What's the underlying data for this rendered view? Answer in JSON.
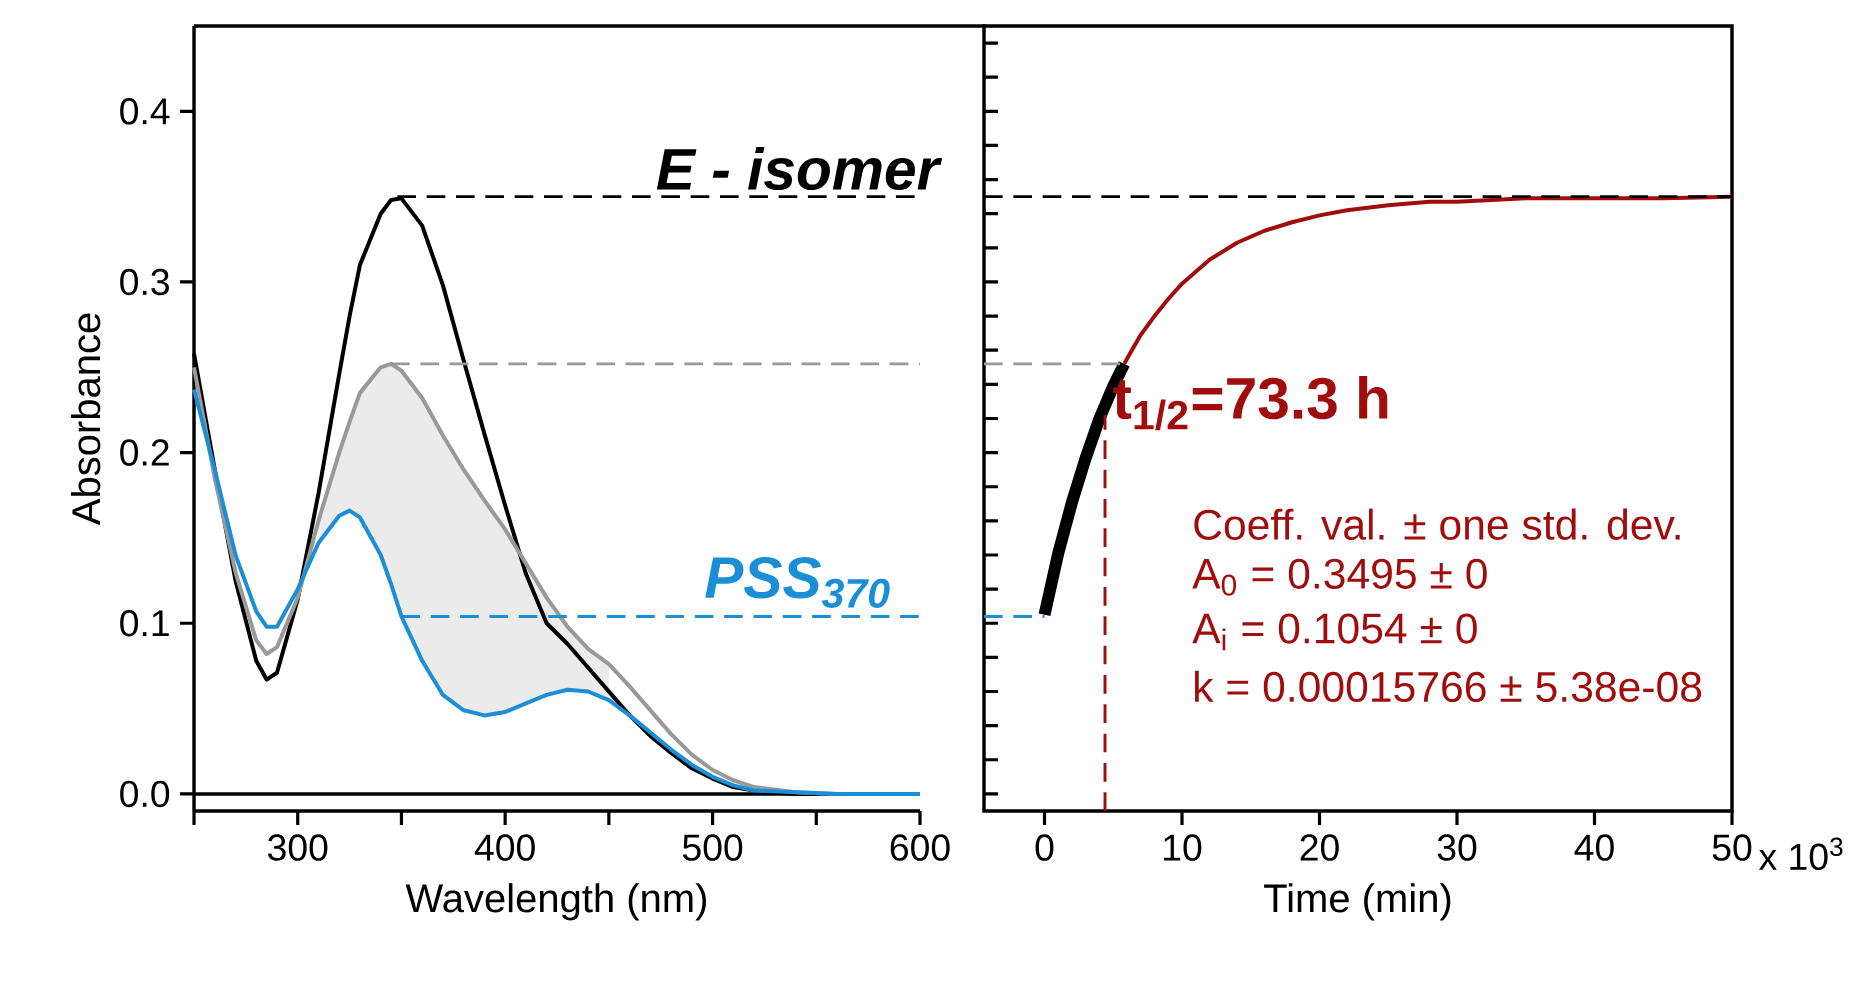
{
  "chart_data": [
    {
      "type": "line",
      "xlabel": "Wavelength (nm)",
      "ylabel": "Absorbance",
      "x": [
        250,
        260,
        270,
        280,
        285,
        290,
        300,
        310,
        320,
        325,
        330,
        340,
        345,
        350,
        360,
        370,
        380,
        390,
        400,
        410,
        420,
        430,
        440,
        450,
        460,
        470,
        480,
        490,
        500,
        510,
        520,
        540,
        560,
        600
      ],
      "series": [
        {
          "color": "#000000",
          "values": [
            0.258,
            0.19,
            0.125,
            0.078,
            0.067,
            0.071,
            0.114,
            0.176,
            0.246,
            0.28,
            0.31,
            0.34,
            0.348,
            0.349,
            0.333,
            0.298,
            0.254,
            0.211,
            0.169,
            0.129,
            0.1,
            0.088,
            0.074,
            0.06,
            0.046,
            0.034,
            0.024,
            0.015,
            0.009,
            0.004,
            0.002,
            0,
            0,
            0
          ]
        },
        {
          "color": "#999999",
          "values": [
            0.25,
            0.185,
            0.13,
            0.09,
            0.082,
            0.086,
            0.115,
            0.16,
            0.2,
            0.218,
            0.235,
            0.25,
            0.252,
            0.248,
            0.232,
            0.21,
            0.19,
            0.172,
            0.155,
            0.135,
            0.115,
            0.098,
            0.085,
            0.076,
            0.063,
            0.049,
            0.035,
            0.023,
            0.014,
            0.008,
            0.004,
            0.001,
            0,
            0
          ],
          "lower": [
            null,
            null,
            null,
            null,
            null,
            null,
            null,
            0.147,
            0.163,
            0.166,
            0.162,
            0.14,
            0.123,
            0.104,
            0.078,
            0.058,
            0.049,
            0.046,
            0.048,
            0.053,
            0.058,
            0.061,
            0.06,
            0.055,
            null,
            null,
            null,
            null,
            null,
            null,
            null,
            null,
            null,
            null
          ],
          "upper": [
            null,
            null,
            null,
            null,
            null,
            null,
            null,
            0.16,
            0.2,
            0.218,
            0.235,
            0.25,
            0.252,
            0.248,
            0.232,
            0.21,
            0.19,
            0.172,
            0.155,
            0.135,
            0.115,
            0.098,
            0.085,
            0.076,
            null,
            null,
            null,
            null,
            null,
            null,
            null,
            null,
            null,
            null
          ]
        },
        {
          "color": "#1a8fd6",
          "values": [
            0.237,
            0.19,
            0.14,
            0.107,
            0.098,
            0.098,
            0.12,
            0.147,
            0.163,
            0.166,
            0.162,
            0.14,
            0.123,
            0.104,
            0.078,
            0.058,
            0.049,
            0.046,
            0.048,
            0.053,
            0.058,
            0.061,
            0.06,
            0.055,
            0.046,
            0.036,
            0.026,
            0.017,
            0.01,
            0.005,
            0.002,
            0.001,
            0,
            0
          ]
        },
        {
          "name": "E - isomer",
          "color": "#000000",
          "line_style": "dashed",
          "x": [
            348,
            600
          ],
          "values": [
            0.35,
            0.35
          ]
        },
        {
          "color": "#999999",
          "line_style": "dashed",
          "x": [
            345,
            600
          ],
          "values": [
            0.252,
            0.252
          ]
        },
        {
          "name": "PSS$_{370}$",
          "color": "#1a8fd6",
          "line_style": "dashed",
          "x": [
            350,
            600
          ],
          "values": [
            0.104,
            0.104
          ]
        }
      ],
      "ref_lines": [
        {
          "axis": "y",
          "value": 0,
          "color": "#000000"
        }
      ],
      "xlim": [
        250,
        600
      ],
      "ylim": [
        -0.01,
        0.45
      ],
      "xticks": [
        {
          "value": 250,
          "label": null
        },
        300,
        {
          "value": 350,
          "label": null
        },
        400,
        {
          "value": 450,
          "label": null
        },
        500,
        {
          "value": 550,
          "label": null
        },
        600
      ],
      "yticks": [
        {
          "value": 0,
          "label": "0.0"
        },
        0.1,
        0.2,
        0.3,
        0.4
      ]
    },
    {
      "type": "line",
      "xlabel": "Time (min)",
      "series": [
        {
          "color": "#a00d0d",
          "x": [
            5.8,
            6,
            7,
            8,
            9,
            10,
            12,
            14,
            16,
            18,
            20,
            22,
            25,
            28,
            30,
            35,
            40,
            45,
            50
          ],
          "values": [
            0.252,
            0.255,
            0.269,
            0.28,
            0.29,
            0.299,
            0.313,
            0.323,
            0.33,
            0.335,
            0.339,
            0.342,
            0.345,
            0.347,
            0.347,
            0.349,
            0.349,
            0.349,
            0.35
          ]
        },
        {
          "color": "#000000",
          "x": [
            0,
            1,
            2,
            3,
            4,
            5,
            5.8
          ],
          "values": [
            0.105,
            0.141,
            0.171,
            0.197,
            0.22,
            0.239,
            0.252
          ]
        },
        {
          "color": "#000000",
          "line_style": "dashed",
          "x": [
            -4.4,
            50
          ],
          "values": [
            0.35,
            0.35
          ]
        },
        {
          "color": "#999999",
          "line_style": "dashed",
          "x": [
            -4.4,
            5.8
          ],
          "values": [
            0.252,
            0.252
          ]
        },
        {
          "color": "#1a8fd6",
          "line_style": "dashed",
          "x": [
            -4.4,
            0
          ],
          "values": [
            0.104,
            0.104
          ]
        },
        {
          "color": "#a00d0d",
          "line_style": "dashed",
          "x": [
            4.4,
            4.4
          ],
          "values": [
            -0.01,
            0.222
          ]
        }
      ],
      "annotations": [
        "t$_{1/2}$=73.3 h",
        "Coeff. val. ± one std. dev.",
        "A$_{0}$ = 0.3495 ± 0",
        "A$_{i}$ = 0.1054 ± 0",
        "k = 0.00015766 ± 5.38e-08",
        "x 10$^{3}$"
      ],
      "xlim": [
        -4.4,
        50
      ],
      "ylim": [
        -0.01,
        0.45
      ],
      "xticks": [
        0,
        10,
        20,
        30,
        40,
        50
      ],
      "yticks": [
        {
          "value": 0,
          "label": null
        },
        {
          "value": 0.02,
          "label": null
        },
        {
          "value": 0.04,
          "label": null
        },
        {
          "value": 0.06,
          "label": null
        },
        {
          "value": 0.08,
          "label": null
        },
        {
          "value": 0.1,
          "label": null
        },
        {
          "value": 0.12,
          "label": null
        },
        {
          "value": 0.14,
          "label": null
        },
        {
          "value": 0.16,
          "label": null
        },
        {
          "value": 0.18,
          "label": null
        },
        {
          "value": 0.2,
          "label": null
        },
        {
          "value": 0.22,
          "label": null
        },
        {
          "value": 0.24,
          "label": null
        },
        {
          "value": 0.26,
          "label": null
        },
        {
          "value": 0.28,
          "label": null
        },
        {
          "value": 0.3,
          "label": null
        },
        {
          "value": 0.32,
          "label": null
        },
        {
          "value": 0.34,
          "label": null
        },
        {
          "value": 0.36,
          "label": null
        },
        {
          "value": 0.38,
          "label": null
        },
        {
          "value": 0.4,
          "label": null
        },
        {
          "value": 0.42,
          "label": null
        },
        {
          "value": 0.44,
          "label": null
        }
      ],
      "tick_labels": "x"
    }
  ]
}
